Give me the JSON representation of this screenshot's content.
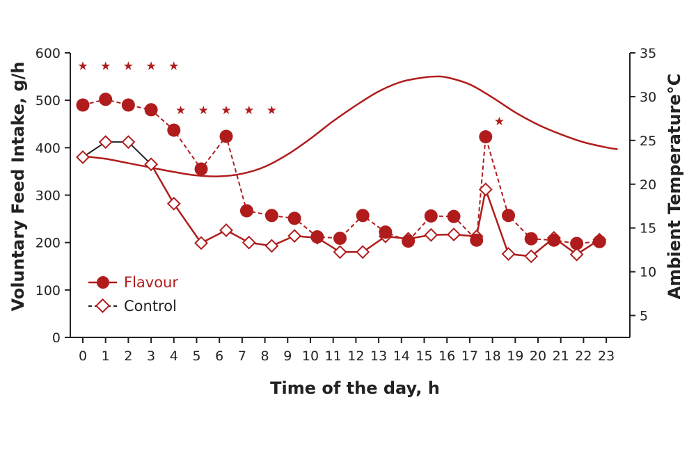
{
  "chart_data": {
    "type": "line",
    "title": "",
    "xlabel": "Time of the day, h",
    "ylabel": "Voluntary Feed Intake, g/h",
    "y2label": "Ambient Temperature°C",
    "x_ticks": [
      "0",
      "1",
      "2",
      "3",
      "4",
      "5",
      "6",
      "7",
      "8",
      "9",
      "10",
      "11",
      "12",
      "13",
      "14",
      "15",
      "16",
      "17",
      "18",
      "19",
      "20",
      "21",
      "22",
      "23"
    ],
    "xlim": [
      0,
      23.5
    ],
    "ylim": [
      0,
      600
    ],
    "y_ticks": [
      "0",
      "100",
      "200",
      "300",
      "400",
      "500",
      "600"
    ],
    "y2lim": [
      2.5,
      35
    ],
    "y2_ticks": [
      "5",
      "10",
      "15",
      "20",
      "25",
      "30",
      "35"
    ],
    "legend_position": "bottom-left",
    "colors": {
      "flavour": "#b01c1c",
      "temperature": "#b01c1c",
      "control_fill": "#ffffff",
      "axis": "#222222"
    },
    "series": [
      {
        "name": "Flavour",
        "marker": "filled-circle",
        "x": [
          0,
          1,
          2,
          3,
          4,
          5.2,
          6.3,
          7.2,
          8.3,
          9.3,
          10.3,
          11.3,
          12.3,
          13.3,
          14.3,
          15.3,
          16.3,
          17.3,
          17.7,
          18.7,
          19.7,
          20.7,
          21.7,
          22.7
        ],
        "values": [
          490,
          502,
          490,
          480,
          437,
          355,
          424,
          267,
          257,
          251,
          212,
          209,
          257,
          222,
          203,
          256,
          255,
          205,
          423,
          257,
          208,
          205,
          198,
          202
        ]
      },
      {
        "name": "Control",
        "marker": "open-diamond",
        "x": [
          0,
          1,
          2,
          3,
          4,
          5.2,
          6.3,
          7.3,
          8.3,
          9.3,
          10.3,
          11.3,
          12.3,
          13.3,
          14.3,
          15.3,
          16.3,
          17.3,
          17.7,
          18.7,
          19.7,
          20.7,
          21.7,
          22.7
        ],
        "values": [
          380,
          412,
          412,
          365,
          282,
          199,
          226,
          200,
          193,
          214,
          210,
          180,
          180,
          213,
          208,
          216,
          217,
          213,
          312,
          176,
          171,
          210,
          175,
          206
        ]
      },
      {
        "name": "Ambient Temperature",
        "axis": "right",
        "x": [
          0,
          1,
          2,
          3,
          4,
          5,
          6,
          7,
          8,
          9,
          10,
          11,
          12,
          13,
          14,
          15,
          15.5,
          16,
          17,
          18,
          19,
          20,
          21,
          22,
          23,
          23.5
        ],
        "values": [
          23.2,
          22.9,
          22.4,
          21.9,
          21.4,
          21.0,
          20.9,
          21.2,
          22.0,
          23.4,
          25.2,
          27.2,
          29.0,
          30.6,
          31.7,
          32.2,
          32.3,
          32.2,
          31.4,
          29.9,
          28.2,
          26.8,
          25.7,
          24.8,
          24.2,
          24.0
        ]
      }
    ],
    "significance_markers": {
      "symbol": "★",
      "x": [
        0,
        1,
        2,
        3,
        4,
        4.3,
        5.3,
        6.3,
        7.3,
        8.3,
        18.3
      ],
      "y": [
        573,
        573,
        573,
        573,
        573,
        480,
        480,
        480,
        480,
        480,
        456
      ]
    }
  }
}
